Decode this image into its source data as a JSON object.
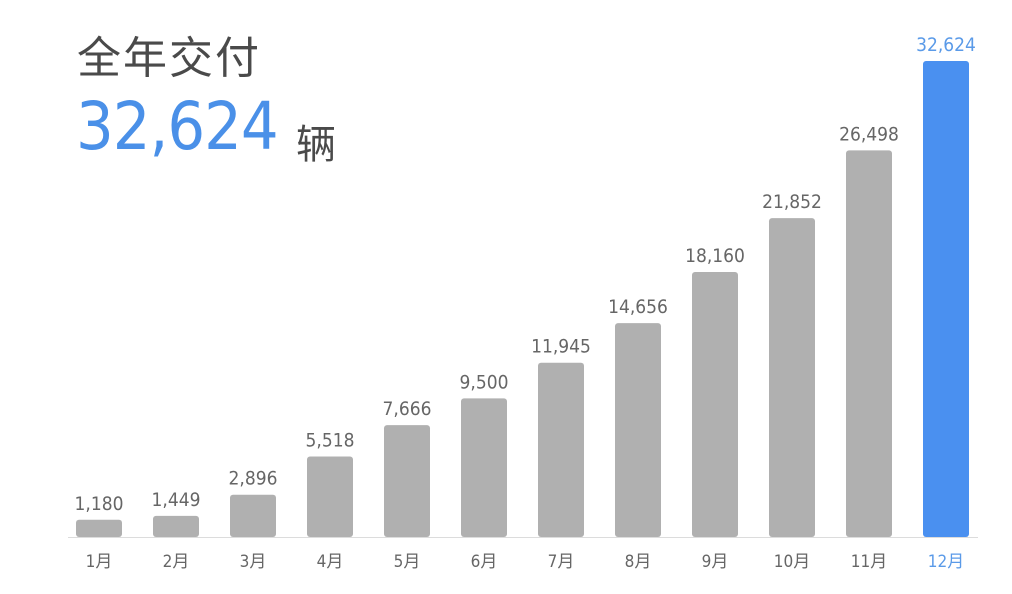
{
  "header": {
    "title": "全年交付",
    "total": "32,624",
    "unit": "辆"
  },
  "chart_data": {
    "type": "bar",
    "title": "全年交付",
    "categories": [
      "1月",
      "2月",
      "3月",
      "4月",
      "5月",
      "6月",
      "7月",
      "8月",
      "9月",
      "10月",
      "11月",
      "12月"
    ],
    "values": [
      1180,
      1449,
      2896,
      5518,
      7666,
      9500,
      11945,
      14656,
      18160,
      21852,
      26498,
      32624
    ],
    "value_labels": [
      "1,180",
      "1,449",
      "2,896",
      "5,518",
      "7,666",
      "9,500",
      "11,945",
      "14,656",
      "18,160",
      "21,852",
      "26,498",
      "32,624"
    ],
    "highlight_index": 11,
    "colors": {
      "bar": "#b0b0b0",
      "highlight": "#4a90f0",
      "label": "#666666",
      "highlight_label": "#5a9ae8"
    },
    "grid": false,
    "legend": "none"
  }
}
